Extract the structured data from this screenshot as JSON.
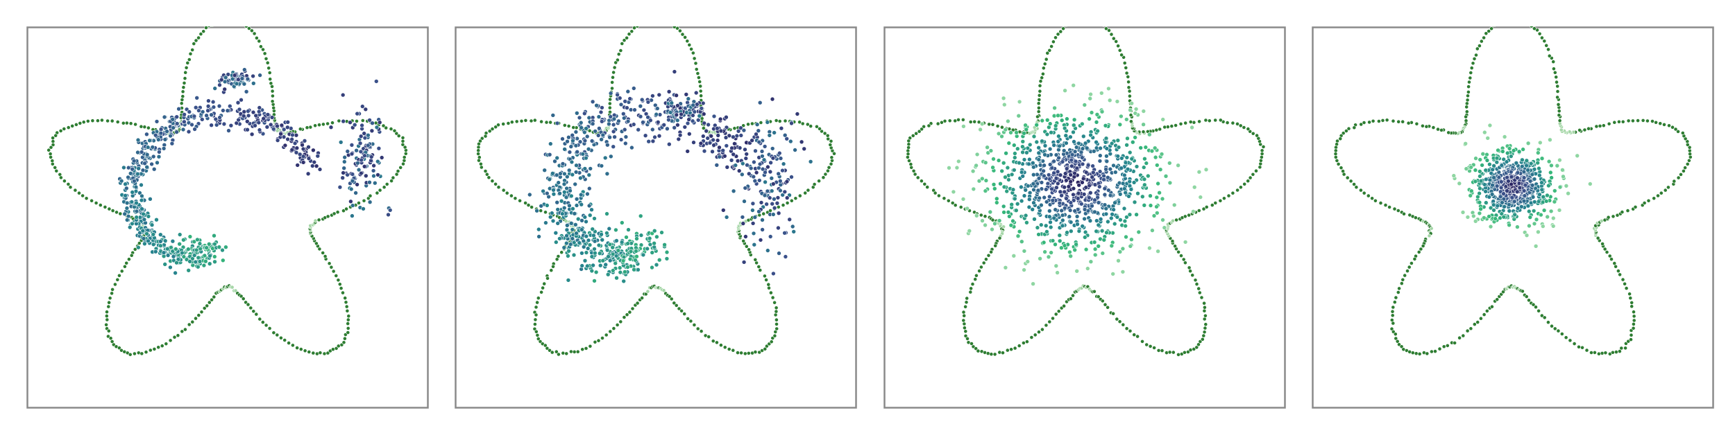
{
  "figure": {
    "background": "#ffffff",
    "frame_color": "#8a8a8a"
  },
  "chart_data": [
    {
      "type": "scatter",
      "panel": 1,
      "grid": false,
      "title": "",
      "xlabel": "",
      "ylabel": "",
      "xlim": [
        -1.05,
        1.05
      ],
      "ylim": [
        -1.1,
        0.92
      ],
      "boundary": {
        "shape": "five-pointed rounded star",
        "color": "#2e7d32",
        "highlight_color": "#a5d6a7",
        "points": 360
      },
      "series": [
        {
          "kind": "spiral",
          "points": 620,
          "color_scale": [
            "#2a1e5c",
            "#26828e",
            "#5ec962"
          ]
        },
        {
          "kind": "cluster",
          "cx": 0.05,
          "cy": 0.65,
          "spread": 0.05,
          "points": 60
        },
        {
          "kind": "arm",
          "cx": 0.72,
          "cy": 0.22,
          "spread": 0.06,
          "points": 120
        }
      ]
    },
    {
      "type": "scatter",
      "panel": 2,
      "grid": false,
      "title": "",
      "xlabel": "",
      "ylabel": "",
      "xlim": [
        -1.05,
        1.05
      ],
      "ylim": [
        -1.1,
        0.92
      ],
      "boundary": {
        "shape": "five-pointed rounded star",
        "color": "#2e7d32",
        "highlight_color": "#a5d6a7",
        "points": 360
      },
      "series": [
        {
          "kind": "spiral-diffused",
          "points": 700
        },
        {
          "kind": "cluster",
          "cx": 0.15,
          "cy": 0.48,
          "spread": 0.06,
          "points": 60
        },
        {
          "kind": "arm",
          "cx": 0.6,
          "cy": 0.12,
          "spread": 0.09,
          "points": 150
        }
      ]
    },
    {
      "type": "scatter",
      "panel": 3,
      "grid": false,
      "title": "",
      "xlabel": "",
      "ylabel": "",
      "xlim": [
        -1.05,
        1.05
      ],
      "ylim": [
        -1.1,
        0.92
      ],
      "boundary": {
        "shape": "five-pointed rounded star",
        "color": "#2e7d32",
        "highlight_color": "#a5d6a7",
        "points": 360
      },
      "series": [
        {
          "kind": "blob",
          "cx": -0.05,
          "cy": 0.1,
          "spread_x": 0.22,
          "spread_y": 0.18,
          "points": 900
        }
      ]
    },
    {
      "type": "scatter",
      "panel": 4,
      "grid": false,
      "title": "",
      "xlabel": "",
      "ylabel": "",
      "xlim": [
        -1.05,
        1.05
      ],
      "ylim": [
        -1.1,
        0.92
      ],
      "boundary": {
        "shape": "five-pointed rounded star",
        "color": "#2e7d32",
        "highlight_color": "#a5d6a7",
        "points": 360
      },
      "series": [
        {
          "kind": "blob",
          "cx": 0.0,
          "cy": 0.08,
          "spread_x": 0.11,
          "spread_y": 0.1,
          "points": 600
        }
      ]
    }
  ]
}
